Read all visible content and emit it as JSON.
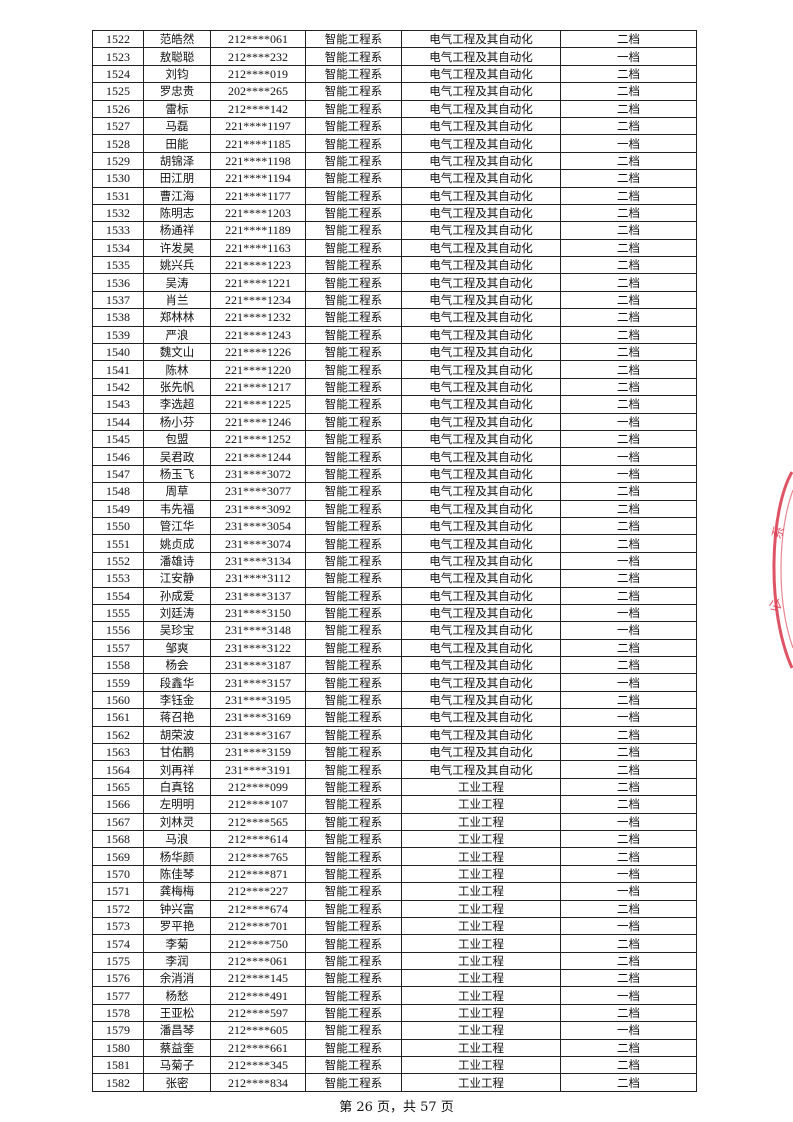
{
  "table": {
    "rows": [
      [
        "1522",
        "范皓然",
        "212****061",
        "智能工程系",
        "电气工程及其自动化",
        "二档"
      ],
      [
        "1523",
        "敖聪聪",
        "212****232",
        "智能工程系",
        "电气工程及其自动化",
        "一档"
      ],
      [
        "1524",
        "刘钧",
        "212****019",
        "智能工程系",
        "电气工程及其自动化",
        "二档"
      ],
      [
        "1525",
        "罗忠贵",
        "202****265",
        "智能工程系",
        "电气工程及其自动化",
        "二档"
      ],
      [
        "1526",
        "雷标",
        "212****142",
        "智能工程系",
        "电气工程及其自动化",
        "二档"
      ],
      [
        "1527",
        "马磊",
        "221****1197",
        "智能工程系",
        "电气工程及其自动化",
        "二档"
      ],
      [
        "1528",
        "田能",
        "221****1185",
        "智能工程系",
        "电气工程及其自动化",
        "一档"
      ],
      [
        "1529",
        "胡锦泽",
        "221****1198",
        "智能工程系",
        "电气工程及其自动化",
        "二档"
      ],
      [
        "1530",
        "田江朋",
        "221****1194",
        "智能工程系",
        "电气工程及其自动化",
        "二档"
      ],
      [
        "1531",
        "曹江海",
        "221****1177",
        "智能工程系",
        "电气工程及其自动化",
        "二档"
      ],
      [
        "1532",
        "陈明志",
        "221****1203",
        "智能工程系",
        "电气工程及其自动化",
        "二档"
      ],
      [
        "1533",
        "杨通祥",
        "221****1189",
        "智能工程系",
        "电气工程及其自动化",
        "二档"
      ],
      [
        "1534",
        "许发昊",
        "221****1163",
        "智能工程系",
        "电气工程及其自动化",
        "二档"
      ],
      [
        "1535",
        "姚兴兵",
        "221****1223",
        "智能工程系",
        "电气工程及其自动化",
        "二档"
      ],
      [
        "1536",
        "吴涛",
        "221****1221",
        "智能工程系",
        "电气工程及其自动化",
        "二档"
      ],
      [
        "1537",
        "肖兰",
        "221****1234",
        "智能工程系",
        "电气工程及其自动化",
        "二档"
      ],
      [
        "1538",
        "郑林林",
        "221****1232",
        "智能工程系",
        "电气工程及其自动化",
        "二档"
      ],
      [
        "1539",
        "严浪",
        "221****1243",
        "智能工程系",
        "电气工程及其自动化",
        "二档"
      ],
      [
        "1540",
        "魏文山",
        "221****1226",
        "智能工程系",
        "电气工程及其自动化",
        "二档"
      ],
      [
        "1541",
        "陈林",
        "221****1220",
        "智能工程系",
        "电气工程及其自动化",
        "二档"
      ],
      [
        "1542",
        "张先帆",
        "221****1217",
        "智能工程系",
        "电气工程及其自动化",
        "二档"
      ],
      [
        "1543",
        "李选超",
        "221****1225",
        "智能工程系",
        "电气工程及其自动化",
        "二档"
      ],
      [
        "1544",
        "杨小芬",
        "221****1246",
        "智能工程系",
        "电气工程及其自动化",
        "一档"
      ],
      [
        "1545",
        "包盟",
        "221****1252",
        "智能工程系",
        "电气工程及其自动化",
        "二档"
      ],
      [
        "1546",
        "吴君政",
        "221****1244",
        "智能工程系",
        "电气工程及其自动化",
        "一档"
      ],
      [
        "1547",
        "杨玉飞",
        "231****3072",
        "智能工程系",
        "电气工程及其自动化",
        "一档"
      ],
      [
        "1548",
        "周草",
        "231****3077",
        "智能工程系",
        "电气工程及其自动化",
        "二档"
      ],
      [
        "1549",
        "韦先福",
        "231****3092",
        "智能工程系",
        "电气工程及其自动化",
        "二档"
      ],
      [
        "1550",
        "管江华",
        "231****3054",
        "智能工程系",
        "电气工程及其自动化",
        "二档"
      ],
      [
        "1551",
        "姚贞成",
        "231****3074",
        "智能工程系",
        "电气工程及其自动化",
        "二档"
      ],
      [
        "1552",
        "潘雄诗",
        "231****3134",
        "智能工程系",
        "电气工程及其自动化",
        "一档"
      ],
      [
        "1553",
        "江安静",
        "231****3112",
        "智能工程系",
        "电气工程及其自动化",
        "二档"
      ],
      [
        "1554",
        "孙成爱",
        "231****3137",
        "智能工程系",
        "电气工程及其自动化",
        "二档"
      ],
      [
        "1555",
        "刘廷涛",
        "231****3150",
        "智能工程系",
        "电气工程及其自动化",
        "一档"
      ],
      [
        "1556",
        "吴珍宝",
        "231****3148",
        "智能工程系",
        "电气工程及其自动化",
        "一档"
      ],
      [
        "1557",
        "邹爽",
        "231****3122",
        "智能工程系",
        "电气工程及其自动化",
        "二档"
      ],
      [
        "1558",
        "杨会",
        "231****3187",
        "智能工程系",
        "电气工程及其自动化",
        "二档"
      ],
      [
        "1559",
        "段鑫华",
        "231****3157",
        "智能工程系",
        "电气工程及其自动化",
        "一档"
      ],
      [
        "1560",
        "李钰金",
        "231****3195",
        "智能工程系",
        "电气工程及其自动化",
        "二档"
      ],
      [
        "1561",
        "蒋召艳",
        "231****3169",
        "智能工程系",
        "电气工程及其自动化",
        "一档"
      ],
      [
        "1562",
        "胡荣波",
        "231****3167",
        "智能工程系",
        "电气工程及其自动化",
        "二档"
      ],
      [
        "1563",
        "甘佑鹏",
        "231****3159",
        "智能工程系",
        "电气工程及其自动化",
        "二档"
      ],
      [
        "1564",
        "刘再祥",
        "231****3191",
        "智能工程系",
        "电气工程及其自动化",
        "二档"
      ],
      [
        "1565",
        "白真铭",
        "212****099",
        "智能工程系",
        "工业工程",
        "二档"
      ],
      [
        "1566",
        "左明明",
        "212****107",
        "智能工程系",
        "工业工程",
        "二档"
      ],
      [
        "1567",
        "刘林灵",
        "212****565",
        "智能工程系",
        "工业工程",
        "一档"
      ],
      [
        "1568",
        "马浪",
        "212****614",
        "智能工程系",
        "工业工程",
        "二档"
      ],
      [
        "1569",
        "杨华颜",
        "212****765",
        "智能工程系",
        "工业工程",
        "二档"
      ],
      [
        "1570",
        "陈佳琴",
        "212****871",
        "智能工程系",
        "工业工程",
        "一档"
      ],
      [
        "1571",
        "龚梅梅",
        "212****227",
        "智能工程系",
        "工业工程",
        "一档"
      ],
      [
        "1572",
        "钟兴富",
        "212****674",
        "智能工程系",
        "工业工程",
        "二档"
      ],
      [
        "1573",
        "罗平艳",
        "212****701",
        "智能工程系",
        "工业工程",
        "一档"
      ],
      [
        "1574",
        "李菊",
        "212****750",
        "智能工程系",
        "工业工程",
        "二档"
      ],
      [
        "1575",
        "李润",
        "212****061",
        "智能工程系",
        "工业工程",
        "二档"
      ],
      [
        "1576",
        "余消消",
        "212****145",
        "智能工程系",
        "工业工程",
        "二档"
      ],
      [
        "1577",
        "杨愁",
        "212****491",
        "智能工程系",
        "工业工程",
        "一档"
      ],
      [
        "1578",
        "王亚松",
        "212****597",
        "智能工程系",
        "工业工程",
        "二档"
      ],
      [
        "1579",
        "潘昌琴",
        "212****605",
        "智能工程系",
        "工业工程",
        "一档"
      ],
      [
        "1580",
        "蔡益奎",
        "212****661",
        "智能工程系",
        "工业工程",
        "二档"
      ],
      [
        "1581",
        "马菊子",
        "212****345",
        "智能工程系",
        "工业工程",
        "二档"
      ],
      [
        "1582",
        "张密",
        "212****834",
        "智能工程系",
        "工业工程",
        "二档"
      ]
    ]
  },
  "footer": {
    "page_text": "第 26 页，共 57 页"
  },
  "colors": {
    "stamp": "#d9364a",
    "border": "#222222"
  }
}
